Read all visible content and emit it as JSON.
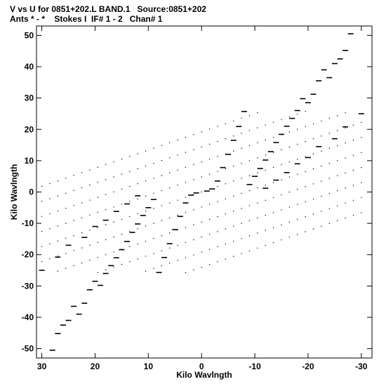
{
  "chart_data": {
    "type": "scatter",
    "title": "V vs U for 0851+202.L BAND.1   Source:0851+202",
    "subtitle": "Ants * - *    Stokes I  IF# 1 - 2   Chan# 1",
    "xlabel": "Kilo Wavlngth",
    "ylabel": "Kilo Wavlngth",
    "xlim": [
      31,
      -32
    ],
    "ylim": [
      -53,
      53
    ],
    "x_reversed": true,
    "grid": false,
    "legend": "none",
    "xticks": [
      30,
      20,
      10,
      0,
      -10,
      -20,
      -30
    ],
    "xtick_labels": [
      "30",
      "20",
      "10",
      "0",
      "-10",
      "-20",
      "-30"
    ],
    "yticks": [
      50,
      40,
      30,
      20,
      10,
      0,
      -10,
      -20,
      -30,
      -40,
      -50
    ],
    "ytick_labels": [
      "50",
      "40",
      "30",
      "20",
      "10",
      "0",
      "-10",
      "-20",
      "-30",
      "-40",
      "-50"
    ],
    "marker_color": "#000000",
    "series": [
      {
        "values_kind": "dashes",
        "points": [
          [
            -28,
            50.5
          ],
          [
            -27,
            45.2
          ],
          [
            -26,
            42.5
          ],
          [
            -25,
            41.0
          ],
          [
            -24,
            36.5
          ],
          [
            -23,
            39.0
          ],
          [
            -22,
            35.5
          ],
          [
            -21,
            31.2
          ],
          [
            -20,
            28.5
          ],
          [
            -19,
            29.8
          ],
          [
            -18,
            26.0
          ],
          [
            -17,
            23.5
          ],
          [
            -16,
            21.0
          ],
          [
            -15,
            18.4
          ],
          [
            -14,
            15.8
          ],
          [
            -13,
            12.9
          ],
          [
            -12,
            10.2
          ],
          [
            -11,
            7.5
          ],
          [
            -10,
            5.0
          ],
          [
            -9,
            2.4
          ],
          [
            -8,
            25.7
          ],
          [
            -7,
            20.9
          ],
          [
            -6,
            16.5
          ],
          [
            -5,
            12.0
          ],
          [
            -4,
            7.8
          ],
          [
            -3,
            3.5
          ],
          [
            -2,
            1.0
          ],
          [
            -1,
            0.3
          ],
          [
            -30,
            25.0
          ],
          [
            -27,
            20.8
          ],
          [
            -25,
            17.0
          ],
          [
            -22,
            14.5
          ],
          [
            -20,
            11.0
          ],
          [
            -18,
            9.0
          ],
          [
            -16,
            6.2
          ],
          [
            -14,
            3.8
          ],
          [
            -12,
            1.2
          ],
          [
            28,
            -50.5
          ],
          [
            27,
            -45.2
          ],
          [
            26,
            -42.5
          ],
          [
            25,
            -41.0
          ],
          [
            24,
            -36.5
          ],
          [
            23,
            -39.0
          ],
          [
            22,
            -35.5
          ],
          [
            21,
            -31.2
          ],
          [
            20,
            -28.5
          ],
          [
            19,
            -29.8
          ],
          [
            18,
            -26.0
          ],
          [
            17,
            -23.5
          ],
          [
            16,
            -21.0
          ],
          [
            15,
            -18.4
          ],
          [
            14,
            -15.8
          ],
          [
            13,
            -12.9
          ],
          [
            12,
            -10.2
          ],
          [
            11,
            -7.5
          ],
          [
            10,
            -5.0
          ],
          [
            9,
            -2.4
          ],
          [
            8,
            -25.7
          ],
          [
            7,
            -20.9
          ],
          [
            6,
            -16.5
          ],
          [
            5,
            -12.0
          ],
          [
            4,
            -7.8
          ],
          [
            3,
            -3.5
          ],
          [
            2,
            -1.0
          ],
          [
            1,
            -0.3
          ],
          [
            30,
            -25.0
          ],
          [
            27,
            -20.8
          ],
          [
            25,
            -17.0
          ],
          [
            22,
            -14.5
          ],
          [
            20,
            -11.0
          ],
          [
            18,
            -9.0
          ],
          [
            16,
            -6.2
          ],
          [
            14,
            -3.8
          ],
          [
            12,
            -1.2
          ]
        ]
      }
    ]
  }
}
